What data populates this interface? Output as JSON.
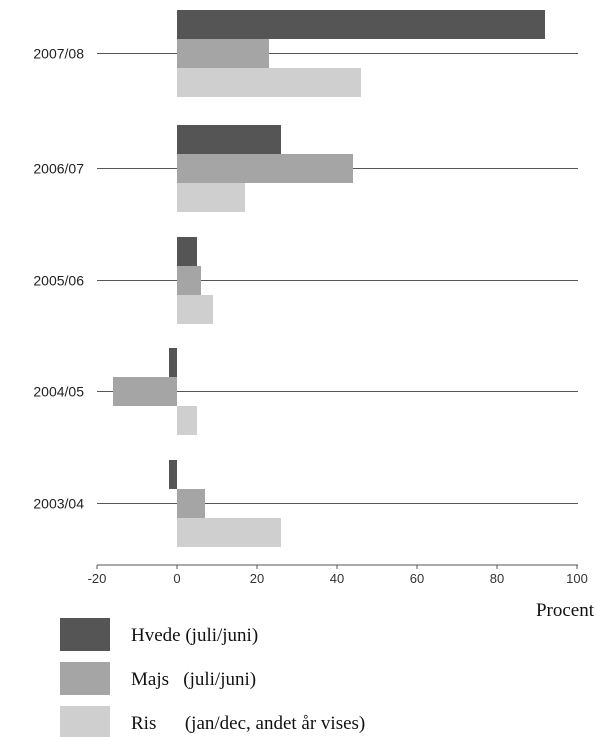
{
  "chart_data": {
    "type": "bar",
    "orientation": "horizontal",
    "categories": [
      "2007/08",
      "2006/07",
      "2005/06",
      "2004/05",
      "2003/04"
    ],
    "series": [
      {
        "name": "Hvede (juli/juni)",
        "color": "#555555",
        "values": [
          92,
          26,
          5,
          -2,
          -2
        ]
      },
      {
        "name": "Majs   (juli/juni)",
        "color": "#a5a5a5",
        "values": [
          23,
          44,
          6,
          -16,
          7
        ]
      },
      {
        "name": "Ris      (jan/dec, andet år vises)",
        "color": "#cfcfcf",
        "values": [
          46,
          17,
          9,
          5,
          26
        ]
      }
    ],
    "xlabel": "Procent",
    "xlim": [
      -20,
      100
    ],
    "xticks": [
      "-20",
      "0",
      "20",
      "40",
      "60",
      "80",
      "100"
    ],
    "grid": false,
    "legend_position": "bottom-left"
  }
}
